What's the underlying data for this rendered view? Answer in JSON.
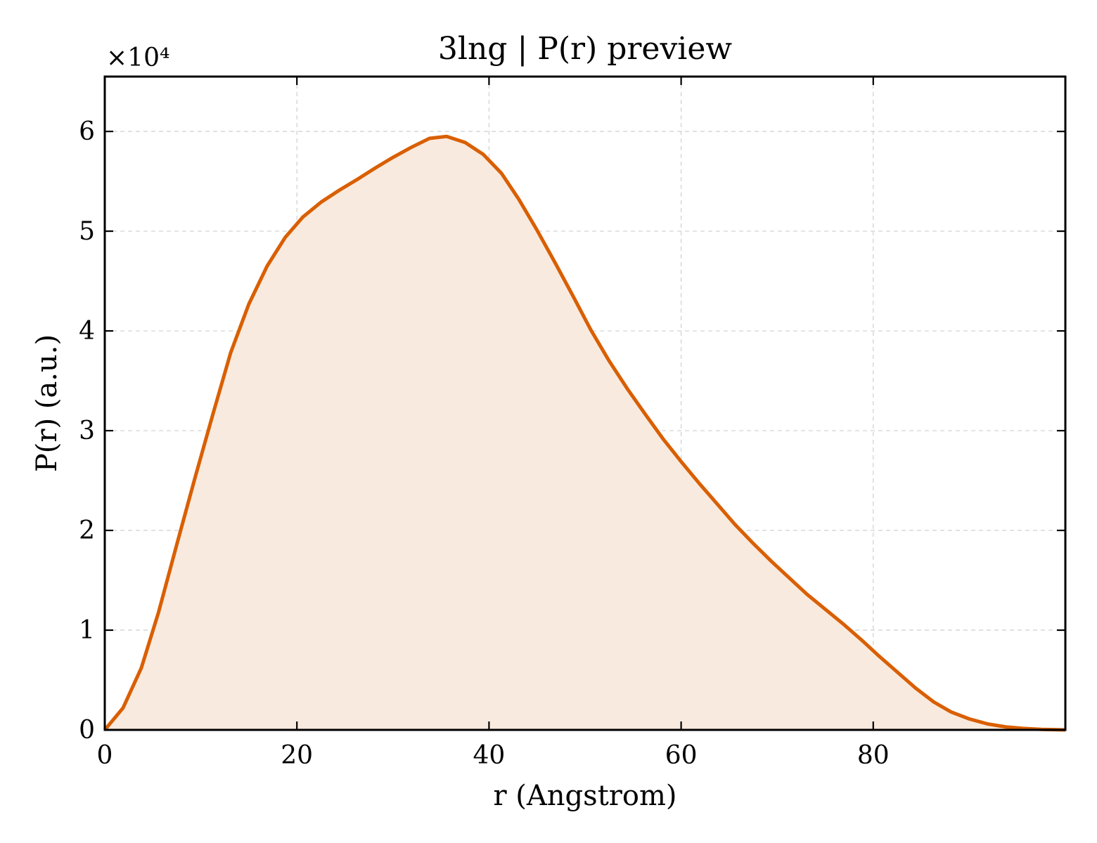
{
  "colors": {
    "line": "#d95f02",
    "fill": "#f9eadf",
    "axes": "#000000",
    "grid": "#cfcfcf",
    "background": "#ffffff"
  },
  "chart_data": {
    "type": "area",
    "title": "3lng | P(r) preview",
    "xlabel": "r (Angstrom)",
    "ylabel": "P(r) (a.u.)",
    "y_offset_text": "×10⁴",
    "y_scale": 10000,
    "xlim": [
      0,
      100
    ],
    "ylim": [
      0,
      65500
    ],
    "x_ticks": [
      0,
      20,
      40,
      60,
      80
    ],
    "x_tick_labels": [
      "0",
      "20",
      "40",
      "60",
      "80"
    ],
    "y_ticks": [
      0,
      10000,
      20000,
      30000,
      40000,
      50000,
      60000
    ],
    "y_tick_labels": [
      "0",
      "1",
      "2",
      "3",
      "4",
      "5",
      "6"
    ],
    "grid": true,
    "series": [
      {
        "x": [
          0,
          1.9,
          3.8,
          5.6,
          7.5,
          9.4,
          11.3,
          13.1,
          15,
          16.9,
          18.8,
          20.6,
          22.5,
          24.4,
          26.3,
          28.1,
          30,
          31.9,
          33.8,
          35.6,
          37.5,
          39.4,
          41.3,
          43.1,
          45,
          46.9,
          48.8,
          50.6,
          52.5,
          54.4,
          56.3,
          58.1,
          60,
          61.9,
          63.8,
          65.6,
          67.5,
          69.4,
          71.3,
          73.1,
          75,
          76.9,
          78.8,
          80.6,
          82.5,
          84.4,
          86.3,
          88.1,
          90,
          91.9,
          93.8,
          95.6,
          97.5,
          100
        ],
        "y": [
          0,
          2200,
          6200,
          11800,
          18600,
          25300,
          31800,
          37800,
          42700,
          46500,
          49400,
          51400,
          52900,
          54100,
          55200,
          56300,
          57400,
          58400,
          59300,
          59500,
          58900,
          57700,
          55800,
          53200,
          50100,
          46800,
          43400,
          40100,
          37000,
          34200,
          31600,
          29200,
          26900,
          24700,
          22600,
          20600,
          18700,
          16900,
          15200,
          13600,
          12100,
          10600,
          9000,
          7400,
          5800,
          4200,
          2800,
          1800,
          1100,
          600,
          300,
          150,
          50,
          0
        ]
      }
    ]
  }
}
